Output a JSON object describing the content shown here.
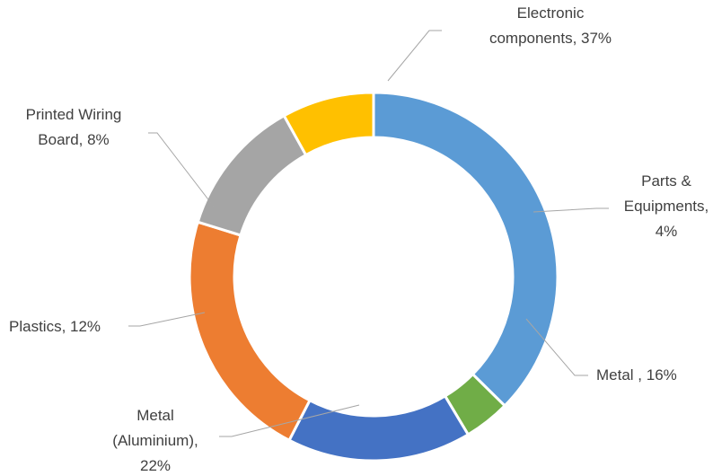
{
  "chart_data": {
    "type": "pie",
    "subtype": "doughnut",
    "title": "",
    "categories": [
      "Electronic components",
      "Parts & Equipments",
      "Metal ",
      "Metal (Aluminium)",
      "Plastics",
      "Printed Wiring Board"
    ],
    "values": [
      37,
      4,
      16,
      22,
      12,
      8
    ],
    "colors": [
      "#5b9bd5",
      "#70ad47",
      "#4472c4",
      "#ed7d31",
      "#a5a5a5",
      "#ffc000"
    ],
    "data_labels": [
      [
        "Electronic",
        "components, 37%"
      ],
      [
        "Parts &",
        "Equipments,",
        "4%"
      ],
      [
        "Metal , 16%"
      ],
      [
        "Metal",
        "(Aluminium),",
        "22%"
      ],
      [
        "Plastics, 12%"
      ],
      [
        "Printed Wiring",
        "Board, 8%"
      ]
    ],
    "legend": "none"
  }
}
